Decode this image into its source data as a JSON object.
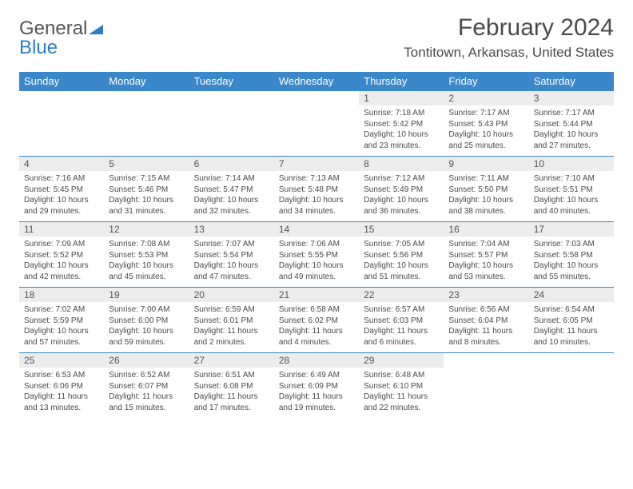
{
  "logo": {
    "part1": "General",
    "part2": "Blue"
  },
  "title": "February 2024",
  "location": "Tontitown, Arkansas, United States",
  "colors": {
    "header_bg": "#3a87c9",
    "daynum_bg": "#ececec",
    "text": "#4a4a4a",
    "border": "#3a87c9"
  },
  "dow": [
    "Sunday",
    "Monday",
    "Tuesday",
    "Wednesday",
    "Thursday",
    "Friday",
    "Saturday"
  ],
  "weeks": [
    [
      null,
      null,
      null,
      null,
      {
        "n": "1",
        "sr": "Sunrise: 7:18 AM",
        "ss": "Sunset: 5:42 PM",
        "dl1": "Daylight: 10 hours",
        "dl2": "and 23 minutes."
      },
      {
        "n": "2",
        "sr": "Sunrise: 7:17 AM",
        "ss": "Sunset: 5:43 PM",
        "dl1": "Daylight: 10 hours",
        "dl2": "and 25 minutes."
      },
      {
        "n": "3",
        "sr": "Sunrise: 7:17 AM",
        "ss": "Sunset: 5:44 PM",
        "dl1": "Daylight: 10 hours",
        "dl2": "and 27 minutes."
      }
    ],
    [
      {
        "n": "4",
        "sr": "Sunrise: 7:16 AM",
        "ss": "Sunset: 5:45 PM",
        "dl1": "Daylight: 10 hours",
        "dl2": "and 29 minutes."
      },
      {
        "n": "5",
        "sr": "Sunrise: 7:15 AM",
        "ss": "Sunset: 5:46 PM",
        "dl1": "Daylight: 10 hours",
        "dl2": "and 31 minutes."
      },
      {
        "n": "6",
        "sr": "Sunrise: 7:14 AM",
        "ss": "Sunset: 5:47 PM",
        "dl1": "Daylight: 10 hours",
        "dl2": "and 32 minutes."
      },
      {
        "n": "7",
        "sr": "Sunrise: 7:13 AM",
        "ss": "Sunset: 5:48 PM",
        "dl1": "Daylight: 10 hours",
        "dl2": "and 34 minutes."
      },
      {
        "n": "8",
        "sr": "Sunrise: 7:12 AM",
        "ss": "Sunset: 5:49 PM",
        "dl1": "Daylight: 10 hours",
        "dl2": "and 36 minutes."
      },
      {
        "n": "9",
        "sr": "Sunrise: 7:11 AM",
        "ss": "Sunset: 5:50 PM",
        "dl1": "Daylight: 10 hours",
        "dl2": "and 38 minutes."
      },
      {
        "n": "10",
        "sr": "Sunrise: 7:10 AM",
        "ss": "Sunset: 5:51 PM",
        "dl1": "Daylight: 10 hours",
        "dl2": "and 40 minutes."
      }
    ],
    [
      {
        "n": "11",
        "sr": "Sunrise: 7:09 AM",
        "ss": "Sunset: 5:52 PM",
        "dl1": "Daylight: 10 hours",
        "dl2": "and 42 minutes."
      },
      {
        "n": "12",
        "sr": "Sunrise: 7:08 AM",
        "ss": "Sunset: 5:53 PM",
        "dl1": "Daylight: 10 hours",
        "dl2": "and 45 minutes."
      },
      {
        "n": "13",
        "sr": "Sunrise: 7:07 AM",
        "ss": "Sunset: 5:54 PM",
        "dl1": "Daylight: 10 hours",
        "dl2": "and 47 minutes."
      },
      {
        "n": "14",
        "sr": "Sunrise: 7:06 AM",
        "ss": "Sunset: 5:55 PM",
        "dl1": "Daylight: 10 hours",
        "dl2": "and 49 minutes."
      },
      {
        "n": "15",
        "sr": "Sunrise: 7:05 AM",
        "ss": "Sunset: 5:56 PM",
        "dl1": "Daylight: 10 hours",
        "dl2": "and 51 minutes."
      },
      {
        "n": "16",
        "sr": "Sunrise: 7:04 AM",
        "ss": "Sunset: 5:57 PM",
        "dl1": "Daylight: 10 hours",
        "dl2": "and 53 minutes."
      },
      {
        "n": "17",
        "sr": "Sunrise: 7:03 AM",
        "ss": "Sunset: 5:58 PM",
        "dl1": "Daylight: 10 hours",
        "dl2": "and 55 minutes."
      }
    ],
    [
      {
        "n": "18",
        "sr": "Sunrise: 7:02 AM",
        "ss": "Sunset: 5:59 PM",
        "dl1": "Daylight: 10 hours",
        "dl2": "and 57 minutes."
      },
      {
        "n": "19",
        "sr": "Sunrise: 7:00 AM",
        "ss": "Sunset: 6:00 PM",
        "dl1": "Daylight: 10 hours",
        "dl2": "and 59 minutes."
      },
      {
        "n": "20",
        "sr": "Sunrise: 6:59 AM",
        "ss": "Sunset: 6:01 PM",
        "dl1": "Daylight: 11 hours",
        "dl2": "and 2 minutes."
      },
      {
        "n": "21",
        "sr": "Sunrise: 6:58 AM",
        "ss": "Sunset: 6:02 PM",
        "dl1": "Daylight: 11 hours",
        "dl2": "and 4 minutes."
      },
      {
        "n": "22",
        "sr": "Sunrise: 6:57 AM",
        "ss": "Sunset: 6:03 PM",
        "dl1": "Daylight: 11 hours",
        "dl2": "and 6 minutes."
      },
      {
        "n": "23",
        "sr": "Sunrise: 6:56 AM",
        "ss": "Sunset: 6:04 PM",
        "dl1": "Daylight: 11 hours",
        "dl2": "and 8 minutes."
      },
      {
        "n": "24",
        "sr": "Sunrise: 6:54 AM",
        "ss": "Sunset: 6:05 PM",
        "dl1": "Daylight: 11 hours",
        "dl2": "and 10 minutes."
      }
    ],
    [
      {
        "n": "25",
        "sr": "Sunrise: 6:53 AM",
        "ss": "Sunset: 6:06 PM",
        "dl1": "Daylight: 11 hours",
        "dl2": "and 13 minutes."
      },
      {
        "n": "26",
        "sr": "Sunrise: 6:52 AM",
        "ss": "Sunset: 6:07 PM",
        "dl1": "Daylight: 11 hours",
        "dl2": "and 15 minutes."
      },
      {
        "n": "27",
        "sr": "Sunrise: 6:51 AM",
        "ss": "Sunset: 6:08 PM",
        "dl1": "Daylight: 11 hours",
        "dl2": "and 17 minutes."
      },
      {
        "n": "28",
        "sr": "Sunrise: 6:49 AM",
        "ss": "Sunset: 6:09 PM",
        "dl1": "Daylight: 11 hours",
        "dl2": "and 19 minutes."
      },
      {
        "n": "29",
        "sr": "Sunrise: 6:48 AM",
        "ss": "Sunset: 6:10 PM",
        "dl1": "Daylight: 11 hours",
        "dl2": "and 22 minutes."
      },
      null,
      null
    ]
  ]
}
